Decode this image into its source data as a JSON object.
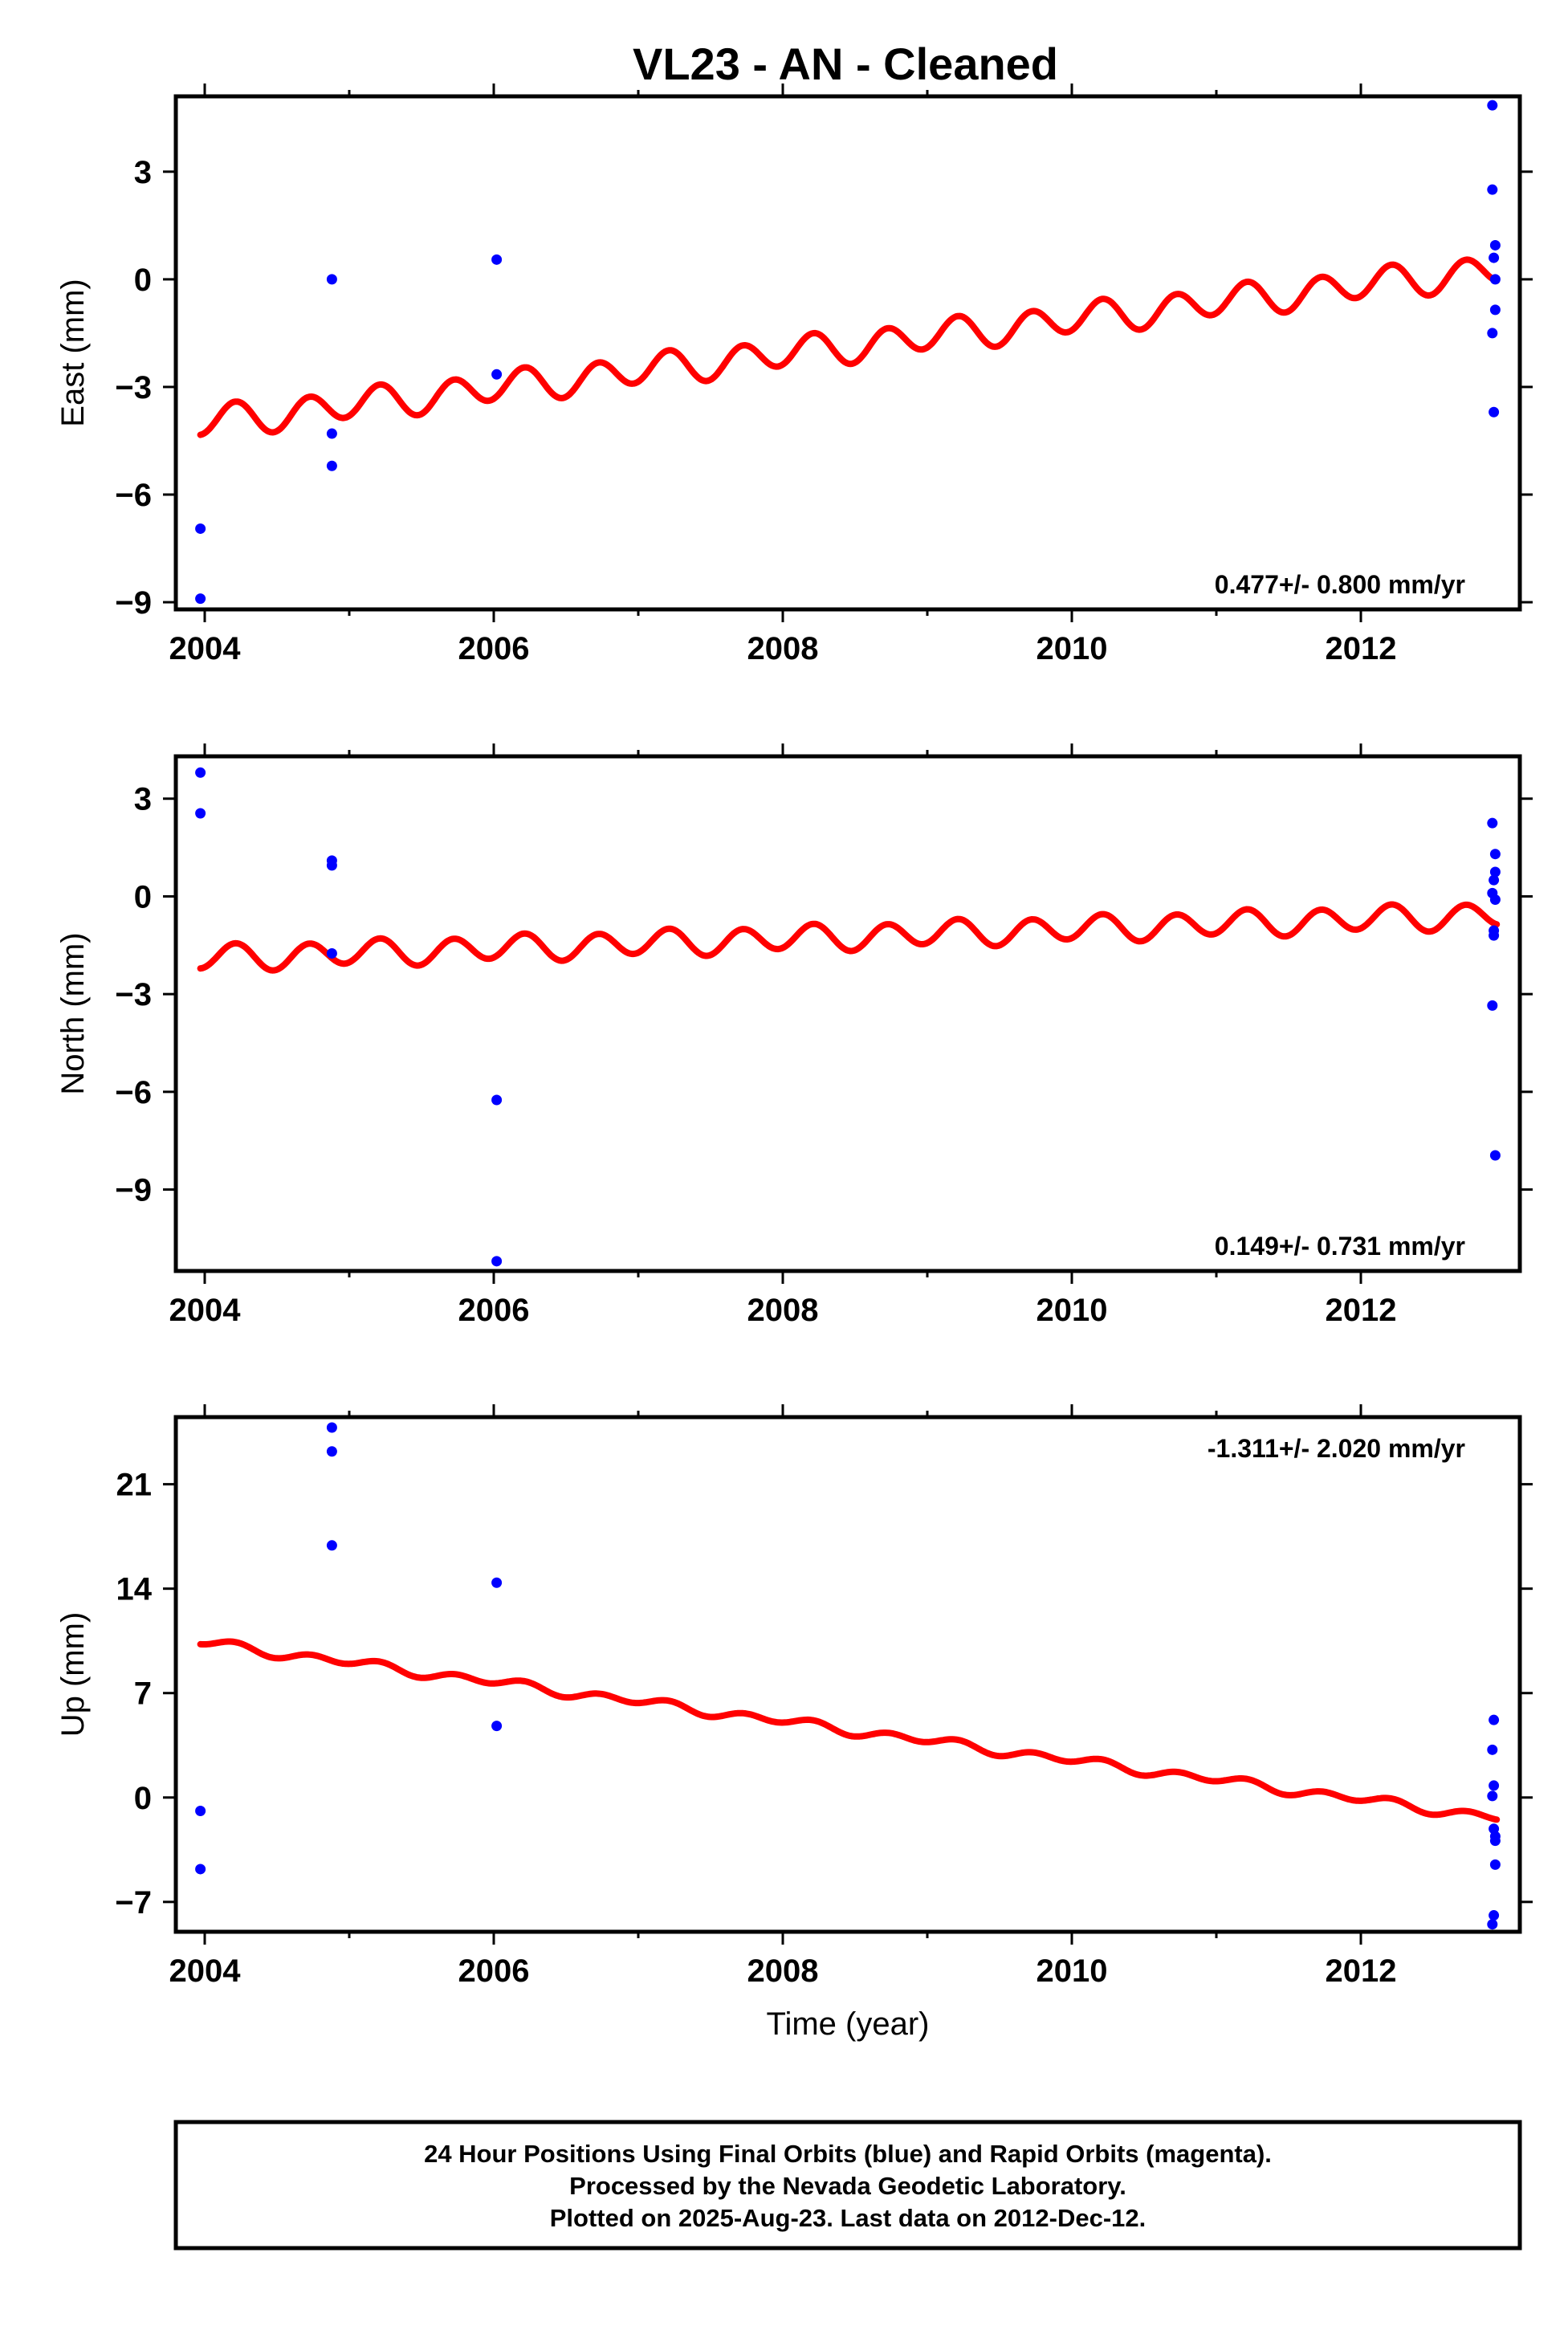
{
  "page": {
    "title": "VL23  - AN - Cleaned"
  },
  "colors": {
    "points": "#0000ff",
    "model": "#ff0000",
    "frame": "#000000"
  },
  "chart_data": [
    {
      "type": "scatter",
      "name": "east",
      "title": "VL23  - AN - Cleaned",
      "ylabel": "East (mm)",
      "xlabel": "",
      "xlim": [
        2003.8,
        2013.1
      ],
      "ylim": [
        -9.2,
        5.1
      ],
      "xticks": [
        2004,
        2006,
        2008,
        2010,
        2012
      ],
      "xticks_minor": [
        2005,
        2007,
        2009,
        2011
      ],
      "yticks": [
        -9,
        -6,
        -3,
        0,
        3
      ],
      "rate": "0.477+/- 0.800 mm/yr",
      "rate_pos": "bottom-right",
      "points": {
        "x": [
          2003.97,
          2003.97,
          2004.88,
          2004.88,
          2004.88,
          2006.02,
          2006.02,
          2012.91,
          2012.91,
          2012.93,
          2012.92,
          2012.93,
          2012.93,
          2012.91,
          2012.92
        ],
        "y": [
          -8.9,
          -6.95,
          0.0,
          -4.3,
          -5.2,
          0.55,
          -2.65,
          4.85,
          2.5,
          0.95,
          0.6,
          0.0,
          -0.85,
          -1.5,
          -3.7
        ]
      },
      "model": {
        "t0": 2003.97,
        "t1": 2012.94,
        "intercept": -4.0,
        "rate": 0.477,
        "annual": {
          "amp": 0.1,
          "phase": 1.0
        },
        "semiannual": {
          "amp": 0.42,
          "phase": -1.57
        }
      }
    },
    {
      "type": "scatter",
      "name": "north",
      "title": "",
      "ylabel": "North (mm)",
      "xlabel": "",
      "xlim": [
        2003.8,
        2013.1
      ],
      "ylim": [
        -11.5,
        4.3
      ],
      "xticks": [
        2004,
        2006,
        2008,
        2010,
        2012
      ],
      "xticks_minor": [
        2005,
        2007,
        2009,
        2011
      ],
      "yticks": [
        -9,
        -6,
        -3,
        0,
        3
      ],
      "rate": "0.149+/- 0.731 mm/yr",
      "rate_pos": "bottom-right",
      "points": {
        "x": [
          2003.97,
          2003.97,
          2004.88,
          2004.88,
          2004.88,
          2006.02,
          2006.02,
          2012.91,
          2012.93,
          2012.93,
          2012.92,
          2012.91,
          2012.93,
          2012.92,
          2012.92,
          2012.91,
          2012.93
        ],
        "y": [
          3.8,
          2.55,
          1.1,
          0.95,
          -1.75,
          -6.25,
          -11.2,
          2.25,
          1.3,
          0.75,
          0.5,
          0.1,
          -0.1,
          -1.05,
          -1.2,
          -3.35,
          -7.95
        ]
      },
      "model": {
        "t0": 2003.97,
        "t1": 2012.94,
        "intercept": -1.9,
        "rate": 0.149,
        "annual": {
          "amp": 0.08,
          "phase": 1.0
        },
        "semiannual": {
          "amp": 0.38,
          "phase": -1.57
        }
      }
    },
    {
      "type": "scatter",
      "name": "up",
      "title": "",
      "ylabel": "Up (mm)",
      "xlabel": "Time (year)",
      "xlim": [
        2003.8,
        2013.1
      ],
      "ylim": [
        -9.0,
        25.5
      ],
      "xticks": [
        2004,
        2006,
        2008,
        2010,
        2012
      ],
      "xticks_minor": [
        2005,
        2007,
        2009,
        2011
      ],
      "yticks": [
        -7,
        0,
        7,
        14,
        21
      ],
      "rate": "-1.311+/- 2.020 mm/yr",
      "rate_pos": "top-right",
      "points": {
        "x": [
          2003.97,
          2003.97,
          2004.88,
          2004.88,
          2004.88,
          2006.02,
          2006.02,
          2012.92,
          2012.91,
          2012.92,
          2012.91,
          2012.92,
          2012.93,
          2012.93,
          2012.93,
          2012.92,
          2012.91
        ],
        "y": [
          -0.9,
          -4.8,
          24.8,
          23.2,
          16.9,
          14.4,
          4.8,
          5.2,
          3.2,
          0.8,
          0.1,
          -2.1,
          -2.6,
          -2.9,
          -4.5,
          -7.9,
          -8.5
        ]
      },
      "model": {
        "t0": 2003.97,
        "t1": 2012.94,
        "intercept": 10.4,
        "rate": -1.311,
        "annual": {
          "amp": 0.15,
          "phase": 1.0
        },
        "semiannual": {
          "amp": 0.25,
          "phase": -1.57
        }
      }
    }
  ],
  "footer": {
    "line1": "24 Hour Positions Using Final Orbits (blue) and Rapid Orbits (magenta).",
    "line2": "Processed by the Nevada Geodetic Laboratory.",
    "line3": "Plotted on 2025-Aug-23. Last data on 2012-Dec-12."
  }
}
